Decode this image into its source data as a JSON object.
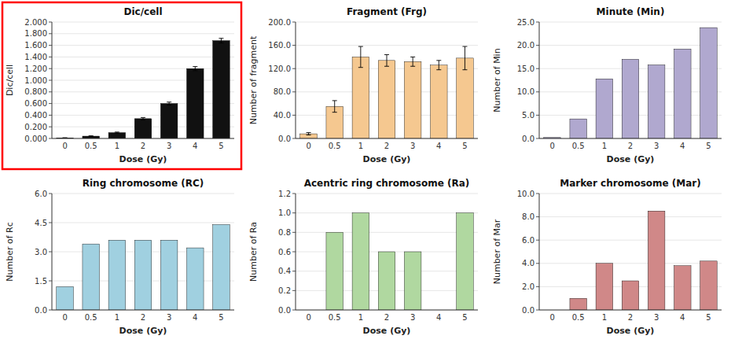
{
  "chart_data": [
    {
      "type": "bar",
      "title": "Dic/cell",
      "xlabel": "Dose (Gy)",
      "ylabel": "Dic/cell",
      "categories": [
        "0",
        "0.5",
        "1",
        "2",
        "3",
        "4",
        "5"
      ],
      "values": [
        0.01,
        0.04,
        0.1,
        0.34,
        0.6,
        1.2,
        1.68
      ],
      "errors": [
        0.003,
        0.005,
        0.01,
        0.02,
        0.025,
        0.035,
        0.04
      ],
      "color": "#111111",
      "ylim": [
        0,
        2.0
      ],
      "yticks": [
        {
          "value": 0.0,
          "label": "0.000"
        },
        {
          "value": 0.2,
          "label": "0.200"
        },
        {
          "value": 0.4,
          "label": "0.400"
        },
        {
          "value": 0.6,
          "label": "0.600"
        },
        {
          "value": 0.8,
          "label": "0.800"
        },
        {
          "value": 1.0,
          "label": "1.000"
        },
        {
          "value": 1.2,
          "label": "1.200"
        },
        {
          "value": 1.4,
          "label": "1.400"
        },
        {
          "value": 1.6,
          "label": "1.600"
        },
        {
          "value": 1.8,
          "label": "1.800"
        },
        {
          "value": 2.0,
          "label": "2.000"
        }
      ]
    },
    {
      "type": "bar",
      "title": "Fragment (Frg)",
      "xlabel": "Dose (Gy)",
      "ylabel": "Number of fragment",
      "categories": [
        "0",
        "0.5",
        "1",
        "2",
        "3",
        "4",
        "5"
      ],
      "values": [
        8.0,
        55.0,
        140.0,
        134.0,
        132.0,
        126.0,
        138.0
      ],
      "errors": [
        2.0,
        10.0,
        18.0,
        10.0,
        8.0,
        8.0,
        20.0
      ],
      "color": "#F5C890",
      "ylim": [
        0,
        200.0
      ],
      "yticks": [
        {
          "value": 0.0,
          "label": "0.0"
        },
        {
          "value": 40.0,
          "label": "40.0"
        },
        {
          "value": 80.0,
          "label": "80.0"
        },
        {
          "value": 120.0,
          "label": "120.0"
        },
        {
          "value": 160.0,
          "label": "160.0"
        },
        {
          "value": 200.0,
          "label": "200.0"
        }
      ]
    },
    {
      "type": "bar",
      "title": "Minute (Min)",
      "xlabel": "Dose (Gy)",
      "ylabel": "Number of Min",
      "categories": [
        "0",
        "0.5",
        "1",
        "2",
        "3",
        "4",
        "5"
      ],
      "values": [
        0.2,
        4.2,
        12.8,
        17.0,
        15.8,
        19.2,
        23.8
      ],
      "color": "#B0A8CF",
      "ylim": [
        0,
        25.0
      ],
      "yticks": [
        {
          "value": 0.0,
          "label": "0.0"
        },
        {
          "value": 5.0,
          "label": "5.0"
        },
        {
          "value": 10.0,
          "label": "10.0"
        },
        {
          "value": 15.0,
          "label": "15.0"
        },
        {
          "value": 20.0,
          "label": "20.0"
        },
        {
          "value": 25.0,
          "label": "25.0"
        }
      ]
    },
    {
      "type": "bar",
      "title": "Ring chromosome (RC)",
      "xlabel": "Dose (Gy)",
      "ylabel": "Number of Rc",
      "categories": [
        "0",
        "0.5",
        "1",
        "2",
        "3",
        "4",
        "5"
      ],
      "values": [
        1.2,
        3.4,
        3.6,
        3.6,
        3.6,
        3.2,
        4.4
      ],
      "color": "#A0D0E0",
      "ylim": [
        0,
        6.0
      ],
      "yticks": [
        {
          "value": 0.0,
          "label": "0.0"
        },
        1.5,
        {
          "value": 3.0,
          "label": "3.0"
        },
        4.5,
        {
          "value": 6.0,
          "label": "6.0"
        }
      ]
    },
    {
      "type": "bar",
      "title": "Acentric ring chromosome (Ra)",
      "xlabel": "Dose (Gy)",
      "ylabel": "Number of Ra",
      "categories": [
        "0",
        "0.5",
        "1",
        "2",
        "3",
        "4",
        "5"
      ],
      "values": [
        0.0,
        0.8,
        1.0,
        0.6,
        0.6,
        0.0,
        1.0
      ],
      "color": "#B0D8A0",
      "ylim": [
        0,
        1.2
      ],
      "yticks": [
        {
          "value": 0.0,
          "label": "0.0"
        },
        0.2,
        0.4,
        0.6,
        0.8,
        {
          "value": 1.0,
          "label": "1.0"
        },
        1.2
      ]
    },
    {
      "type": "bar",
      "title": "Marker chromosome (Mar)",
      "xlabel": "Dose (Gy)",
      "ylabel": "Number of Mar",
      "categories": [
        "0",
        "0.5",
        "1",
        "2",
        "3",
        "4",
        "5"
      ],
      "values": [
        0.0,
        1.0,
        4.0,
        2.5,
        8.5,
        3.8,
        4.2
      ],
      "color": "#D08888",
      "ylim": [
        0,
        10.0
      ],
      "yticks": [
        {
          "value": 0.0,
          "label": "0.0"
        },
        {
          "value": 2.0,
          "label": "2.0"
        },
        {
          "value": 4.0,
          "label": "4.0"
        },
        {
          "value": 6.0,
          "label": "6.0"
        },
        {
          "value": 8.0,
          "label": "8.0"
        },
        {
          "value": 10.0,
          "label": "10.0"
        }
      ]
    }
  ]
}
